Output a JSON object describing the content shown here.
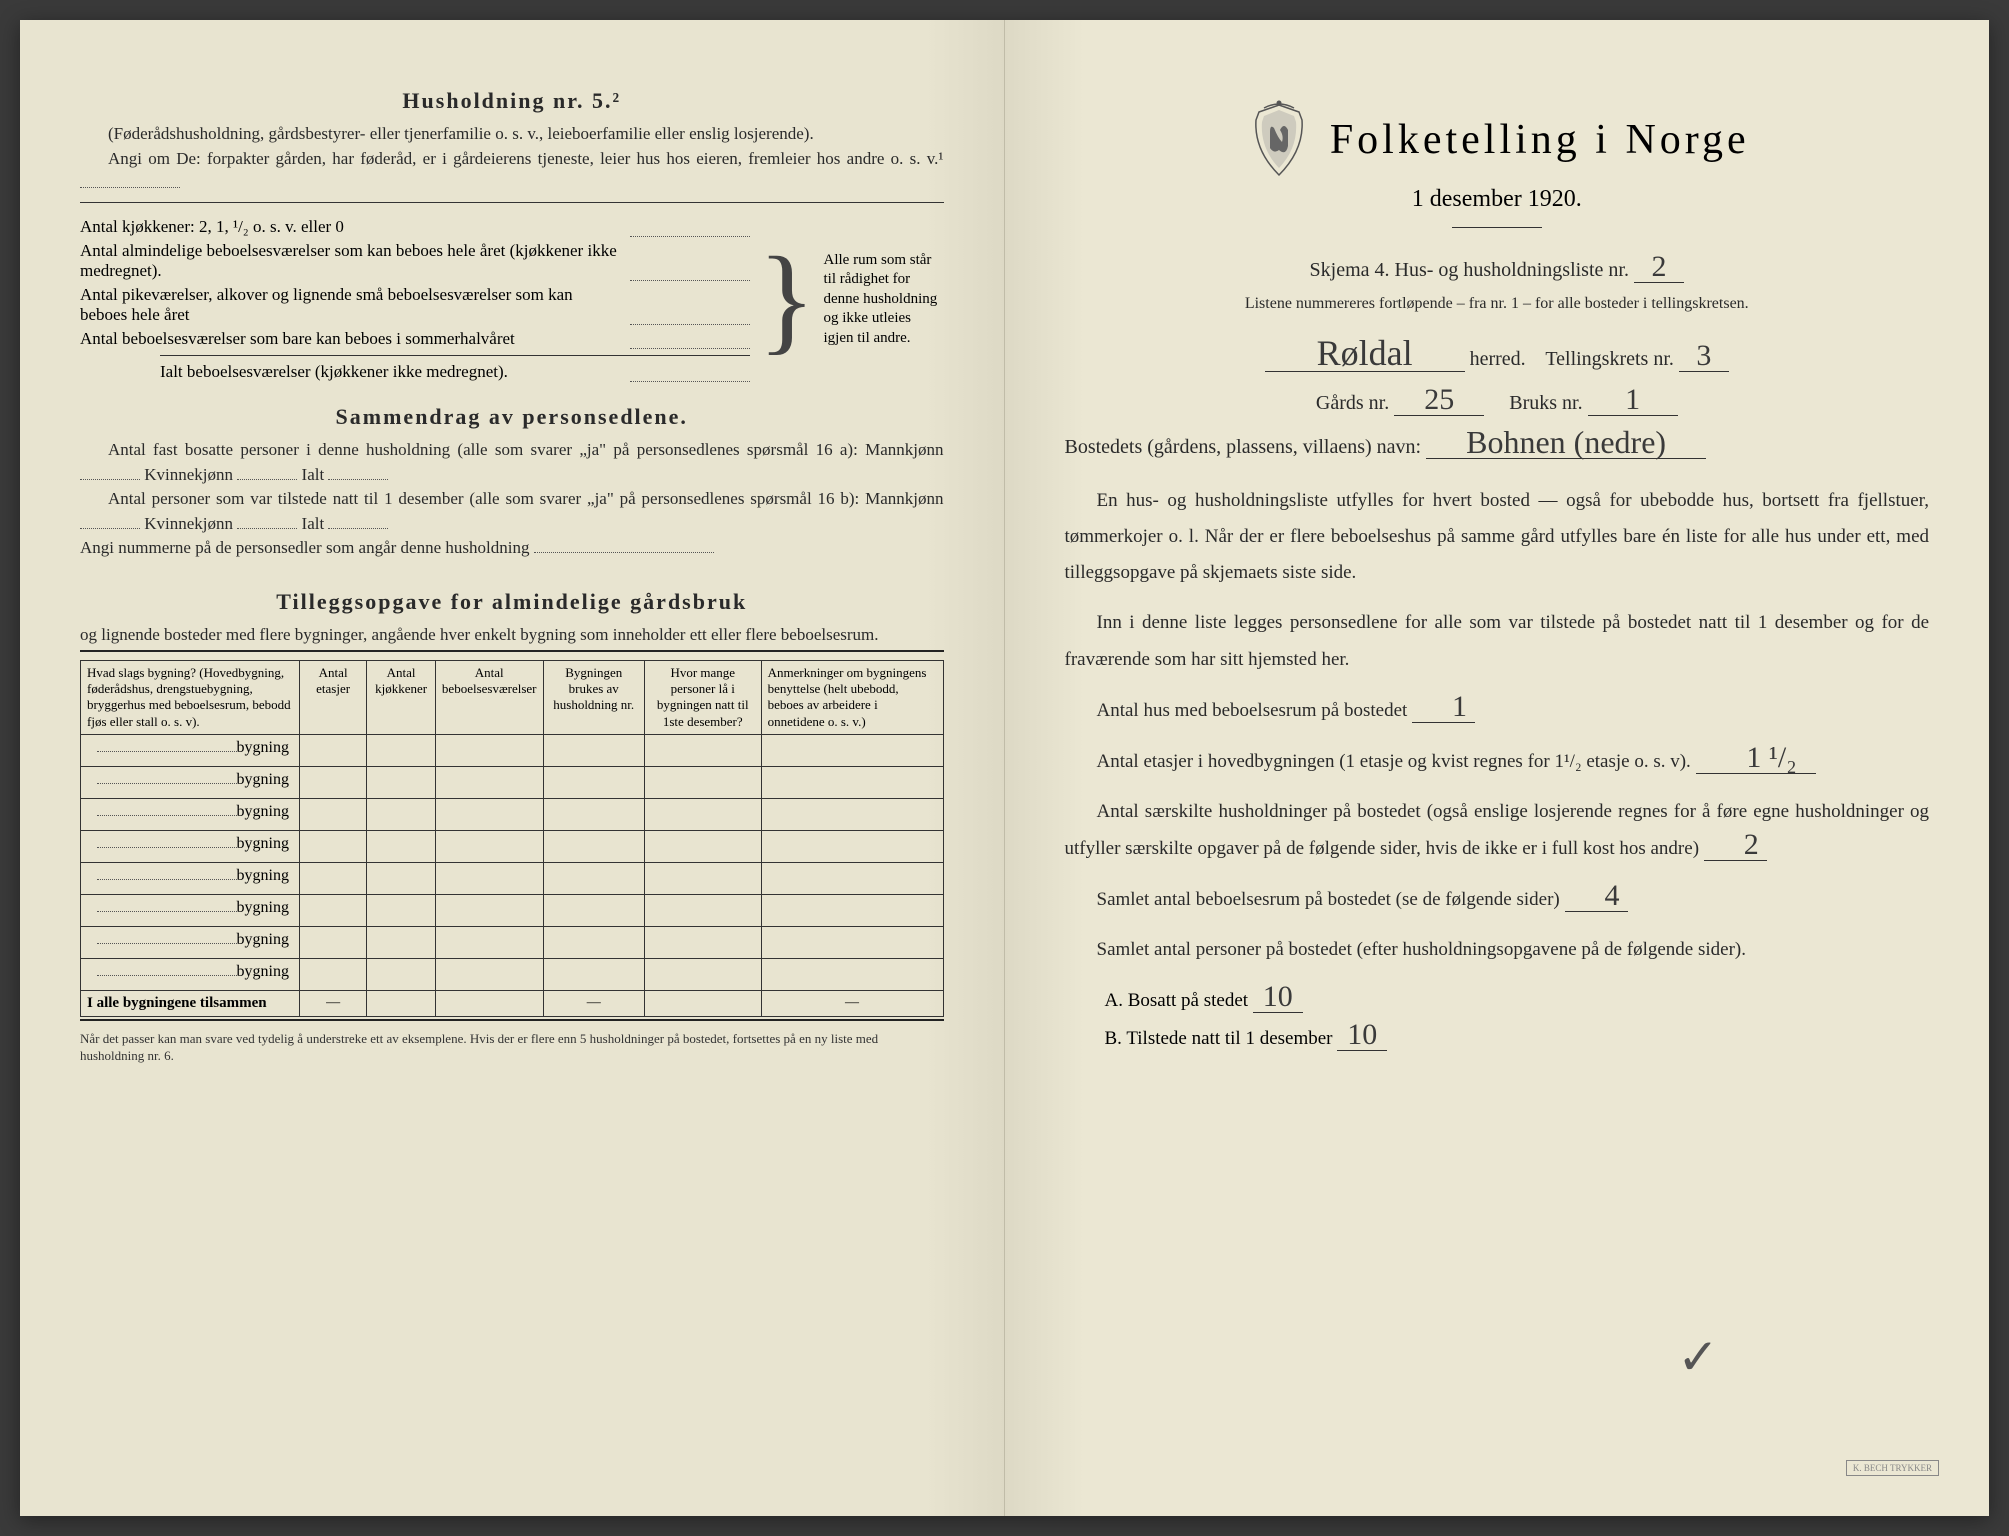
{
  "colors": {
    "paper": "#e8e4d0",
    "ink": "#2a2a2a",
    "handwriting": "#3a3a3a",
    "border": "#333333"
  },
  "left": {
    "heading1": "Husholdning nr. 5.²",
    "para1": "(Føderådshusholdning, gårdsbestyrer- eller tjenerfamilie o. s. v., leieboerfamilie eller enslig losjerende).",
    "para2_pre": "Angi om De:",
    "para2": "forpakter gården, har føderåd, er i gårdeierens tjeneste, leier hus hos eieren, fremleier hos andre o. s. v.¹",
    "kitchens_line": "Antal kjøkkener: 2, 1, ¹/₂ o. s. v. eller 0",
    "room_lines": [
      "Antal almindelige beboelsesværelser som kan beboes hele året (kjøkkener ikke medregnet).",
      "Antal pikeværelser, alkover og lignende små beboelsesværelser som kan beboes hele året",
      "Antal beboelsesværelser som bare kan beboes i sommerhalvåret"
    ],
    "ialt_line": "Ialt beboelsesværelser (kjøkkener ikke medregnet).",
    "bracket_note": "Alle rum som står til rådighet for denne husholdning og ikke utleies igjen til andre.",
    "heading2": "Sammendrag av personsedlene.",
    "samm1": "Antal fast bosatte personer i denne husholdning (alle som svarer „ja\" på personsedlenes spørsmål 16 a): Mannkjønn",
    "samm1b": "Kvinnekjønn",
    "samm1c": "Ialt",
    "samm2": "Antal personer som var tilstede natt til 1 desember (alle som svarer „ja\" på personsedlenes spørsmål 16 b): Mannkjønn",
    "samm3": "Angi nummerne på de personsedler som angår denne husholdning",
    "heading3": "Tilleggsopgave for almindelige gårdsbruk",
    "tillegg_intro": "og lignende bosteder med flere bygninger, angående hver enkelt bygning som inneholder ett eller flere beboelsesrum.",
    "table_headers": [
      "Hvad slags bygning?\n(Hovedbygning, føderådshus, drengstuebygning, bryggerhus med beboelsesrum, bebodd fjøs eller stall o. s. v).",
      "Antal etasjer",
      "Antal kjøkkener",
      "Antal beboelsesværelser",
      "Bygningen brukes av husholdning nr.",
      "Hvor mange personer lå i bygningen natt til 1ste desember?",
      "Anmerkninger om bygningens benyttelse (helt ubebodd, beboes av arbeidere i onnetidene o. s. v.)"
    ],
    "bygning_label": "bygning",
    "row_count": 8,
    "total_row": "I alle bygningene tilsammen",
    "footnote": "Når det passer kan man svare ved tydelig å understreke ett av eksemplene.\nHvis der er flere enn 5 husholdninger på bostedet, fortsettes på en ny liste med husholdning nr. 6."
  },
  "right": {
    "main_title": "Folketelling i Norge",
    "date": "1 desember 1920.",
    "schema_line_pre": "Skjema 4.  Hus- og husholdningsliste nr.",
    "schema_nr": "2",
    "listene": "Listene nummereres fortløpende – fra nr. 1 – for alle bosteder i tellingskretsen.",
    "herred_value": "Røldal",
    "herred_label": "herred.",
    "tellingskrets_label": "Tellingskrets nr.",
    "tellingskrets_nr": "3",
    "gards_label": "Gårds nr.",
    "gards_nr": "25",
    "bruks_label": "Bruks nr.",
    "bruks_nr": "1",
    "bosted_label": "Bostedets (gårdens, plassens, villaens) navn:",
    "bosted_value": "Bohnen (nedre)",
    "para1": "En hus- og husholdningsliste utfylles for hvert bosted — også for ubebodde hus, bortsett fra fjellstuer, tømmerkojer o. l. Når der er flere beboelseshus på samme gård utfylles bare én liste for alle hus under ett, med tilleggsopgave på skjemaets siste side.",
    "para2": "Inn i denne liste legges personsedlene for alle som var tilstede på bostedet natt til 1 desember og for de fraværende som har sitt hjemsted her.",
    "q1_label": "Antal hus med beboelsesrum på bostedet",
    "q1_value": "1",
    "q2_label_a": "Antal etasjer i hovedbygningen (1 etasje og kvist regnes for 1¹/₂ etasje o. s. v).",
    "q2_value": "1 ¹/₂",
    "q3_label": "Antal særskilte husholdninger på bostedet (også enslige losjerende regnes for å føre egne husholdninger og utfyller særskilte opgaver på de følgende sider, hvis de ikke er i full kost hos andre)",
    "q3_value": "2",
    "q4_label": "Samlet antal beboelsesrum på bostedet (se de følgende sider)",
    "q4_value": "4",
    "q5_label": "Samlet antal personer på bostedet (efter husholdningsopgavene på de følgende sider).",
    "qA_label": "A.  Bosatt på stedet",
    "qA_value": "10",
    "qB_label": "B.  Tilstede natt til 1 desember",
    "qB_value": "10"
  }
}
